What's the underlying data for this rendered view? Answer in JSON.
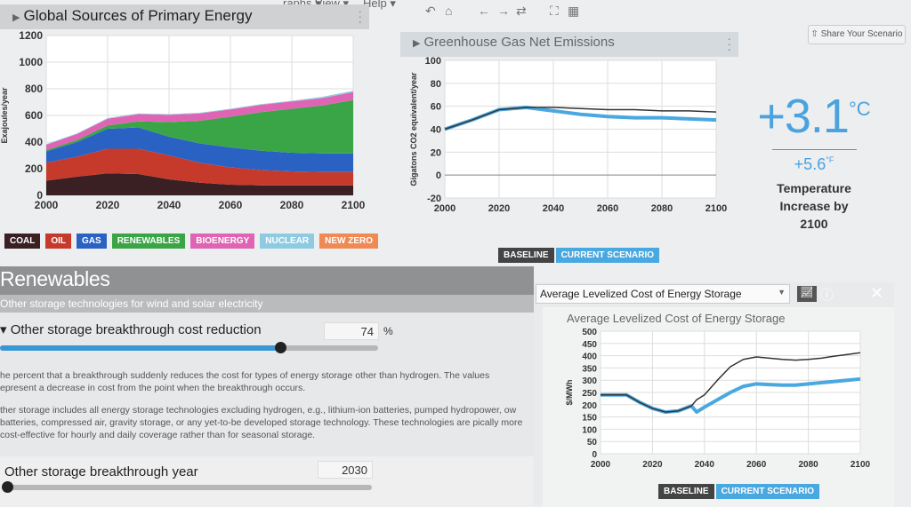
{
  "menu": {
    "graphs": "raphs ▾",
    "view": "View ▾",
    "help": "Help ▾"
  },
  "toolbar_icons": [
    "undo-icon",
    "home-icon",
    "back-icon",
    "forward-icon",
    "refresh-icon",
    "fullscreen-icon",
    "table-icon"
  ],
  "share_label": "⇧ Share Your Scenario",
  "temperature": {
    "celsius": "+3.1",
    "c_unit": "°C",
    "fahrenheit": "+5.6",
    "f_unit": "°F",
    "caption1": "Temperature",
    "caption2": "Increase by",
    "caption3": "2100"
  },
  "colors": {
    "coal": "#3a1f23",
    "oil": "#c63a2c",
    "gas": "#2a62c4",
    "renewables": "#3aa546",
    "bioenergy": "#e064b4",
    "nuclear": "#8fcbe0",
    "newzero": "#ef8a55",
    "baseline": "#333333",
    "current": "#4aa8e0"
  },
  "chart_data": [
    {
      "type": "area",
      "title": "Global Sources of Primary Energy",
      "ylabel": "Exajoules/year",
      "ylim": [
        0,
        1200
      ],
      "yticks": [
        0,
        200,
        400,
        600,
        800,
        1000,
        1200
      ],
      "xticks": [
        2000,
        2020,
        2040,
        2060,
        2080,
        2100
      ],
      "x": [
        2000,
        2010,
        2020,
        2030,
        2040,
        2050,
        2060,
        2070,
        2080,
        2090,
        2100
      ],
      "series": [
        {
          "name": "COAL",
          "values": [
            110,
            140,
            165,
            160,
            120,
            95,
            80,
            75,
            75,
            75,
            75
          ]
        },
        {
          "name": "OIL",
          "values": [
            135,
            150,
            185,
            190,
            180,
            150,
            130,
            115,
            105,
            100,
            100
          ]
        },
        {
          "name": "GAS",
          "values": [
            85,
            110,
            150,
            160,
            140,
            145,
            150,
            145,
            140,
            140,
            140
          ]
        },
        {
          "name": "RENEWABLES",
          "values": [
            10,
            15,
            25,
            45,
            110,
            170,
            230,
            290,
            330,
            360,
            400
          ]
        },
        {
          "name": "BIOENERGY",
          "values": [
            40,
            45,
            50,
            55,
            55,
            55,
            55,
            55,
            55,
            55,
            60
          ]
        },
        {
          "name": "NUCLEAR",
          "values": [
            5,
            5,
            5,
            5,
            5,
            5,
            5,
            5,
            5,
            10,
            10
          ]
        },
        {
          "name": "NEW ZERO",
          "values": [
            0,
            0,
            0,
            0,
            0,
            0,
            0,
            0,
            0,
            0,
            0
          ]
        }
      ]
    },
    {
      "type": "line",
      "title": "Greenhouse Gas Net Emissions",
      "ylabel": "Gigatons CO2 equivalent/year",
      "ylim": [
        -20,
        100
      ],
      "yticks": [
        -20,
        0,
        20,
        40,
        60,
        80,
        100
      ],
      "xticks": [
        2000,
        2020,
        2040,
        2060,
        2080,
        2100
      ],
      "x": [
        2000,
        2010,
        2020,
        2030,
        2040,
        2050,
        2060,
        2070,
        2080,
        2090,
        2100
      ],
      "series": [
        {
          "name": "BASELINE",
          "values": [
            40,
            48,
            57,
            59,
            59,
            58,
            57,
            57,
            56,
            56,
            55
          ]
        },
        {
          "name": "CURRENT SCENARIO",
          "values": [
            40,
            48,
            57,
            59,
            56,
            53,
            51,
            50,
            50,
            49,
            48
          ]
        }
      ]
    },
    {
      "type": "line",
      "title": "Average Levelized Cost of Energy Storage",
      "ylabel": "$/MWh",
      "ylim": [
        0,
        500
      ],
      "yticks": [
        0,
        50,
        100,
        150,
        200,
        250,
        300,
        350,
        400,
        450,
        500
      ],
      "xticks": [
        2000,
        2020,
        2040,
        2060,
        2080,
        2100
      ],
      "x": [
        2000,
        2005,
        2010,
        2015,
        2020,
        2025,
        2030,
        2035,
        2037,
        2040,
        2045,
        2050,
        2055,
        2060,
        2065,
        2070,
        2075,
        2080,
        2085,
        2090,
        2095,
        2100
      ],
      "series": [
        {
          "name": "BASELINE",
          "values": [
            240,
            240,
            240,
            210,
            185,
            170,
            175,
            195,
            220,
            240,
            300,
            355,
            385,
            395,
            390,
            385,
            382,
            385,
            390,
            398,
            405,
            412
          ]
        },
        {
          "name": "CURRENT SCENARIO",
          "values": [
            240,
            240,
            240,
            210,
            185,
            170,
            175,
            195,
            170,
            190,
            220,
            250,
            275,
            285,
            282,
            280,
            280,
            285,
            290,
            295,
            300,
            305
          ]
        }
      ]
    }
  ],
  "energy_panel": {
    "title": "Global Sources of Primary Energy"
  },
  "ghg_panel": {
    "title": "Greenhouse Gas Net Emissions",
    "legend": [
      "BASELINE",
      "CURRENT SCENARIO"
    ]
  },
  "section": {
    "title": "Renewables",
    "subtitle": "Other storage technologies for wind and solar electricity",
    "slider1": {
      "label": "Other storage breakthrough cost reduction",
      "value": "74",
      "unit": "%",
      "fraction": 0.74
    },
    "desc1": "he percent that a breakthrough suddenly reduces the cost for types of energy storage other than hydrogen. The values epresent a decrease in cost from the point when the breakthrough occurs.",
    "desc2": "ther storage includes all energy storage technologies excluding hydrogen, e.g., lithium-ion batteries, pumped hydropower, ow batteries, compressed air, gravity storage, or any yet-to-be developed storage technology. These technologies are pically more cost-effective for hourly and daily coverage rather than for seasonal storage.",
    "slider2": {
      "label": "Other storage breakthrough year",
      "value": "2030",
      "fraction": 0.0
    }
  },
  "storage_panel": {
    "selected": "Average Levelized Cost of Energy Storage",
    "title": "Average Levelized Cost of Energy Storage",
    "legend": [
      "BASELINE",
      "CURRENT SCENARIO"
    ]
  }
}
